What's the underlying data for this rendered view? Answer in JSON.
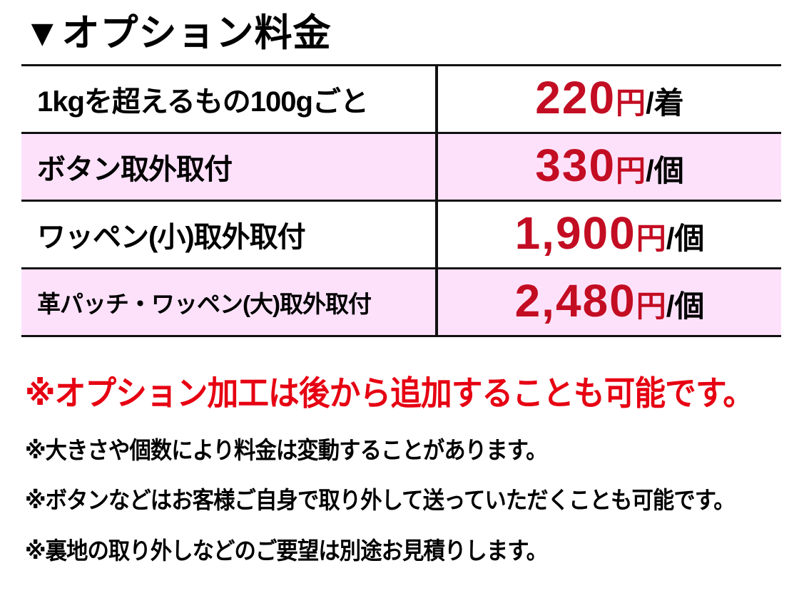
{
  "page": {
    "title": "▼オプション料金"
  },
  "table": {
    "rows": [
      {
        "label": "1kgを超えるもの100gごと",
        "price": "220",
        "currency": "円",
        "unit": "/着"
      },
      {
        "label": "ボタン取外取付",
        "price": "330",
        "currency": "円",
        "unit": "/個"
      },
      {
        "label": "ワッペン(小)取外取付",
        "price": "1,900",
        "currency": "円",
        "unit": "/個"
      },
      {
        "label": "革パッチ・ワッペン(大)取外取付",
        "price": "2,480",
        "currency": "円",
        "unit": "/個"
      }
    ]
  },
  "notes": {
    "highlight": "※オプション加工は後から追加することも可能です。",
    "items": [
      "※大きさや個数により料金は変動することがあります。",
      "※ボタンなどはお客様ご自身で取り外して送っていただくことも可能です。",
      "※裏地の取り外しなどのご要望は別途お見積りします。"
    ]
  },
  "colors": {
    "price_red": "#c30d23",
    "note_red": "#e60012",
    "row_pink": "#fde1fa",
    "border_black": "#111111"
  }
}
